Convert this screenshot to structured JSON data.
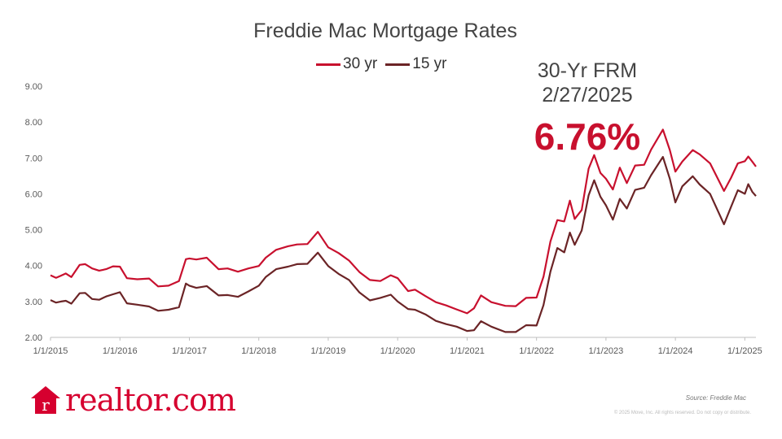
{
  "colors": {
    "series_30": "#c8102e",
    "series_15": "#6b2426",
    "brand": "#d6002f"
  },
  "brand": {
    "name": "realtor.com",
    "icon": "house-r-logo-icon"
  },
  "callout": {
    "label": "30-Yr FRM",
    "date": "2/27/2025",
    "value": "6.76%"
  },
  "source": "Source: Freddie Mac",
  "copyright": "© 2025 Move, Inc. All rights reserved. Do not copy or distribute.",
  "chart_data": {
    "type": "line",
    "title": "Freddie Mac Mortgage Rates",
    "xlabel": "",
    "ylabel": "",
    "xlim": [
      2015.0,
      2025.16
    ],
    "ylim": [
      2.0,
      9.0
    ],
    "y_ticks": [
      "2.00",
      "3.00",
      "4.00",
      "5.00",
      "6.00",
      "7.00",
      "8.00",
      "9.00"
    ],
    "x_ticks": [
      "1/1/2015",
      "1/1/2016",
      "1/1/2017",
      "1/1/2018",
      "1/1/2019",
      "1/1/2020",
      "1/1/2021",
      "1/1/2022",
      "1/1/2023",
      "1/1/2024",
      "1/1/2025"
    ],
    "grid": false,
    "legend_position": "top",
    "series": [
      {
        "name": "30 yr",
        "points": [
          [
            2015.0,
            3.73
          ],
          [
            2015.08,
            3.66
          ],
          [
            2015.15,
            3.72
          ],
          [
            2015.22,
            3.78
          ],
          [
            2015.3,
            3.68
          ],
          [
            2015.42,
            4.02
          ],
          [
            2015.5,
            4.04
          ],
          [
            2015.6,
            3.92
          ],
          [
            2015.7,
            3.86
          ],
          [
            2015.8,
            3.9
          ],
          [
            2015.9,
            3.98
          ],
          [
            2016.0,
            3.97
          ],
          [
            2016.1,
            3.65
          ],
          [
            2016.25,
            3.62
          ],
          [
            2016.42,
            3.64
          ],
          [
            2016.55,
            3.42
          ],
          [
            2016.7,
            3.44
          ],
          [
            2016.85,
            3.57
          ],
          [
            2016.95,
            4.18
          ],
          [
            2017.0,
            4.2
          ],
          [
            2017.1,
            4.17
          ],
          [
            2017.25,
            4.22
          ],
          [
            2017.42,
            3.9
          ],
          [
            2017.55,
            3.92
          ],
          [
            2017.7,
            3.83
          ],
          [
            2017.85,
            3.92
          ],
          [
            2018.0,
            3.99
          ],
          [
            2018.1,
            4.22
          ],
          [
            2018.25,
            4.44
          ],
          [
            2018.42,
            4.54
          ],
          [
            2018.55,
            4.59
          ],
          [
            2018.7,
            4.6
          ],
          [
            2018.85,
            4.94
          ],
          [
            2019.0,
            4.51
          ],
          [
            2019.15,
            4.35
          ],
          [
            2019.3,
            4.14
          ],
          [
            2019.45,
            3.82
          ],
          [
            2019.6,
            3.6
          ],
          [
            2019.75,
            3.57
          ],
          [
            2019.9,
            3.73
          ],
          [
            2020.0,
            3.65
          ],
          [
            2020.15,
            3.29
          ],
          [
            2020.25,
            3.33
          ],
          [
            2020.4,
            3.15
          ],
          [
            2020.55,
            2.98
          ],
          [
            2020.7,
            2.89
          ],
          [
            2020.85,
            2.78
          ],
          [
            2021.0,
            2.67
          ],
          [
            2021.1,
            2.81
          ],
          [
            2021.2,
            3.17
          ],
          [
            2021.35,
            2.98
          ],
          [
            2021.55,
            2.88
          ],
          [
            2021.7,
            2.87
          ],
          [
            2021.85,
            3.1
          ],
          [
            2022.0,
            3.11
          ],
          [
            2022.1,
            3.69
          ],
          [
            2022.2,
            4.67
          ],
          [
            2022.3,
            5.27
          ],
          [
            2022.4,
            5.23
          ],
          [
            2022.48,
            5.81
          ],
          [
            2022.55,
            5.3
          ],
          [
            2022.65,
            5.55
          ],
          [
            2022.75,
            6.7
          ],
          [
            2022.83,
            7.08
          ],
          [
            2022.92,
            6.58
          ],
          [
            2023.0,
            6.42
          ],
          [
            2023.1,
            6.12
          ],
          [
            2023.2,
            6.73
          ],
          [
            2023.3,
            6.3
          ],
          [
            2023.42,
            6.79
          ],
          [
            2023.55,
            6.81
          ],
          [
            2023.65,
            7.23
          ],
          [
            2023.82,
            7.79
          ],
          [
            2023.92,
            7.22
          ],
          [
            2024.0,
            6.62
          ],
          [
            2024.1,
            6.9
          ],
          [
            2024.25,
            7.22
          ],
          [
            2024.35,
            7.1
          ],
          [
            2024.5,
            6.85
          ],
          [
            2024.7,
            6.08
          ],
          [
            2024.8,
            6.44
          ],
          [
            2024.9,
            6.85
          ],
          [
            2025.0,
            6.91
          ],
          [
            2025.05,
            7.04
          ],
          [
            2025.11,
            6.89
          ],
          [
            2025.16,
            6.76
          ]
        ]
      },
      {
        "name": "15 yr",
        "points": [
          [
            2015.0,
            3.04
          ],
          [
            2015.08,
            2.97
          ],
          [
            2015.15,
            3.0
          ],
          [
            2015.22,
            3.02
          ],
          [
            2015.3,
            2.94
          ],
          [
            2015.42,
            3.23
          ],
          [
            2015.5,
            3.24
          ],
          [
            2015.6,
            3.07
          ],
          [
            2015.7,
            3.05
          ],
          [
            2015.8,
            3.14
          ],
          [
            2015.9,
            3.2
          ],
          [
            2016.0,
            3.26
          ],
          [
            2016.1,
            2.95
          ],
          [
            2016.25,
            2.91
          ],
          [
            2016.42,
            2.86
          ],
          [
            2016.55,
            2.74
          ],
          [
            2016.7,
            2.77
          ],
          [
            2016.85,
            2.84
          ],
          [
            2016.95,
            3.5
          ],
          [
            2017.0,
            3.44
          ],
          [
            2017.1,
            3.38
          ],
          [
            2017.25,
            3.43
          ],
          [
            2017.42,
            3.17
          ],
          [
            2017.55,
            3.18
          ],
          [
            2017.7,
            3.13
          ],
          [
            2017.85,
            3.28
          ],
          [
            2018.0,
            3.44
          ],
          [
            2018.1,
            3.68
          ],
          [
            2018.25,
            3.9
          ],
          [
            2018.42,
            3.97
          ],
          [
            2018.55,
            4.04
          ],
          [
            2018.7,
            4.05
          ],
          [
            2018.85,
            4.36
          ],
          [
            2019.0,
            3.99
          ],
          [
            2019.15,
            3.77
          ],
          [
            2019.3,
            3.6
          ],
          [
            2019.45,
            3.25
          ],
          [
            2019.6,
            3.03
          ],
          [
            2019.75,
            3.1
          ],
          [
            2019.9,
            3.19
          ],
          [
            2020.0,
            3.0
          ],
          [
            2020.15,
            2.79
          ],
          [
            2020.25,
            2.77
          ],
          [
            2020.4,
            2.64
          ],
          [
            2020.55,
            2.46
          ],
          [
            2020.7,
            2.37
          ],
          [
            2020.85,
            2.3
          ],
          [
            2021.0,
            2.18
          ],
          [
            2021.1,
            2.2
          ],
          [
            2021.2,
            2.45
          ],
          [
            2021.35,
            2.3
          ],
          [
            2021.55,
            2.15
          ],
          [
            2021.7,
            2.15
          ],
          [
            2021.85,
            2.34
          ],
          [
            2022.0,
            2.33
          ],
          [
            2022.1,
            2.9
          ],
          [
            2022.2,
            3.83
          ],
          [
            2022.3,
            4.49
          ],
          [
            2022.4,
            4.37
          ],
          [
            2022.48,
            4.92
          ],
          [
            2022.55,
            4.58
          ],
          [
            2022.65,
            4.98
          ],
          [
            2022.75,
            5.96
          ],
          [
            2022.83,
            6.38
          ],
          [
            2022.92,
            5.92
          ],
          [
            2023.0,
            5.68
          ],
          [
            2023.1,
            5.28
          ],
          [
            2023.2,
            5.86
          ],
          [
            2023.3,
            5.59
          ],
          [
            2023.42,
            6.11
          ],
          [
            2023.55,
            6.17
          ],
          [
            2023.65,
            6.52
          ],
          [
            2023.82,
            7.03
          ],
          [
            2023.92,
            6.42
          ],
          [
            2024.0,
            5.76
          ],
          [
            2024.1,
            6.21
          ],
          [
            2024.25,
            6.49
          ],
          [
            2024.35,
            6.26
          ],
          [
            2024.5,
            6.0
          ],
          [
            2024.7,
            5.15
          ],
          [
            2024.8,
            5.63
          ],
          [
            2024.9,
            6.1
          ],
          [
            2025.0,
            6.0
          ],
          [
            2025.05,
            6.27
          ],
          [
            2025.11,
            6.05
          ],
          [
            2025.16,
            5.94
          ]
        ]
      }
    ]
  }
}
